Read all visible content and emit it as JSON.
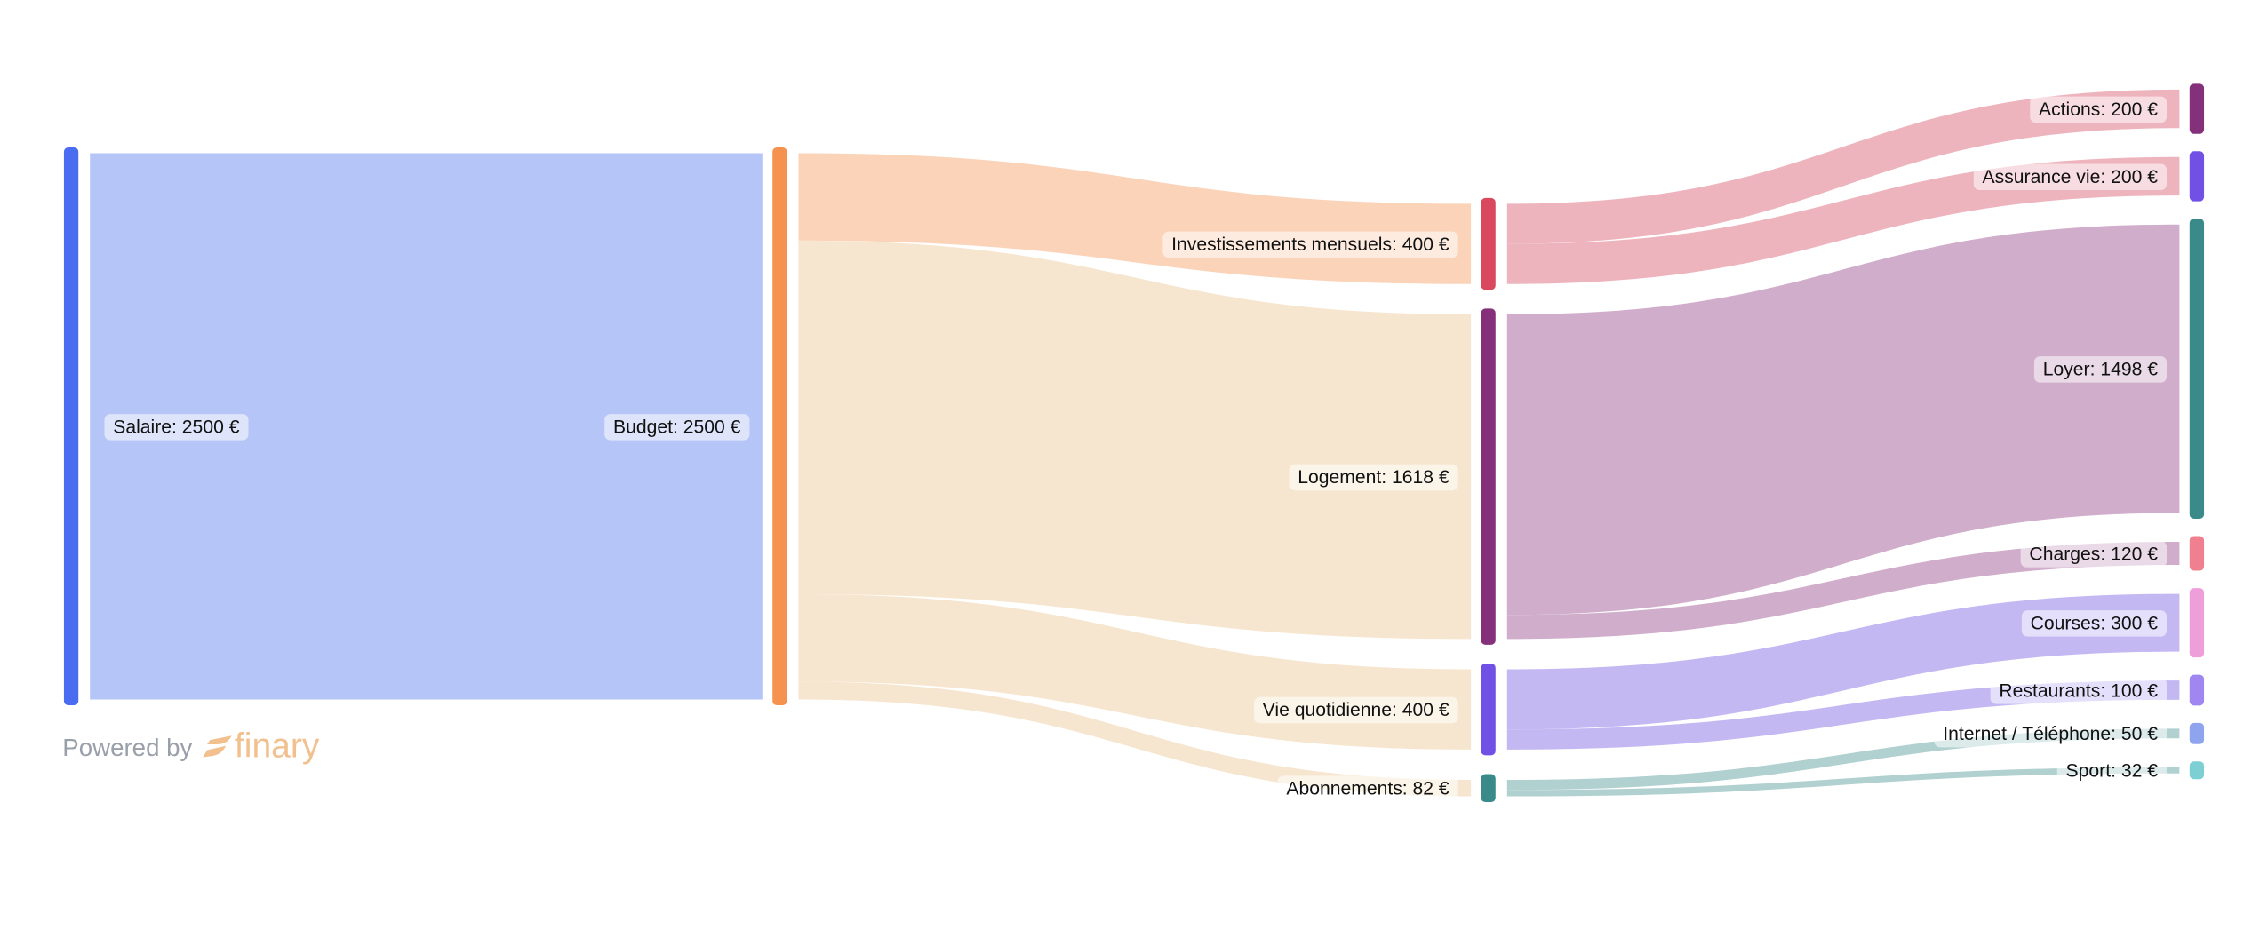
{
  "chart_data": {
    "type": "sankey",
    "title": "",
    "unit": "€",
    "nodes": [
      {
        "id": "salaire",
        "label": "Salaire: 2500 €",
        "value": 2500,
        "color": "#4a6cf0"
      },
      {
        "id": "budget",
        "label": "Budget: 2500 €",
        "value": 2500,
        "color": "#f5924e"
      },
      {
        "id": "investissements",
        "label": "Investissements mensuels: 400 €",
        "value": 400,
        "color": "#d9485e"
      },
      {
        "id": "logement",
        "label": "Logement: 1618 €",
        "value": 1618,
        "color": "#85307a"
      },
      {
        "id": "vie",
        "label": "Vie quotidienne: 400 €",
        "value": 400,
        "color": "#7150e6"
      },
      {
        "id": "abonnements",
        "label": "Abonnements: 82 €",
        "value": 82,
        "color": "#3a8a8a"
      },
      {
        "id": "actions",
        "label": "Actions: 200 €",
        "value": 200,
        "color": "#85307a"
      },
      {
        "id": "assurance",
        "label": "Assurance vie: 200 €",
        "value": 200,
        "color": "#7150e6"
      },
      {
        "id": "loyer",
        "label": "Loyer: 1498 €",
        "value": 1498,
        "color": "#3a8a8a"
      },
      {
        "id": "charges",
        "label": "Charges: 120 €",
        "value": 120,
        "color": "#f0808f"
      },
      {
        "id": "courses",
        "label": "Courses: 300 €",
        "value": 300,
        "color": "#ee9ed8"
      },
      {
        "id": "restaurants",
        "label": "Restaurants: 100 €",
        "value": 100,
        "color": "#9f86f0"
      },
      {
        "id": "internet",
        "label": "Internet / Téléphone: 50 €",
        "value": 50,
        "color": "#8ea4ef"
      },
      {
        "id": "sport",
        "label": "Sport: 32 €",
        "value": 32,
        "color": "#7ccfd3"
      }
    ],
    "links": [
      {
        "source": "salaire",
        "target": "budget",
        "value": 2500,
        "color": "#b5c5f7"
      },
      {
        "source": "budget",
        "target": "investissements",
        "value": 400,
        "color": "#fbd3b8"
      },
      {
        "source": "budget",
        "target": "logement",
        "value": 1618,
        "color": "#f7e6cf"
      },
      {
        "source": "budget",
        "target": "vie",
        "value": 400,
        "color": "#f7e6cf"
      },
      {
        "source": "budget",
        "target": "abonnements",
        "value": 82,
        "color": "#f7e6cf"
      },
      {
        "source": "investissements",
        "target": "actions",
        "value": 200,
        "color": "#eeb4bd"
      },
      {
        "source": "investissements",
        "target": "assurance",
        "value": 200,
        "color": "#eeb4bd"
      },
      {
        "source": "logement",
        "target": "loyer",
        "value": 1498,
        "color": "#d0aecb"
      },
      {
        "source": "logement",
        "target": "charges",
        "value": 120,
        "color": "#d0aecb"
      },
      {
        "source": "vie",
        "target": "courses",
        "value": 300,
        "color": "#c4b8f3"
      },
      {
        "source": "vie",
        "target": "restaurants",
        "value": 100,
        "color": "#c4b8f3"
      },
      {
        "source": "abonnements",
        "target": "internet",
        "value": 50,
        "color": "#b1d0d0"
      },
      {
        "source": "abonnements",
        "target": "sport",
        "value": 32,
        "color": "#b1d0d0"
      }
    ]
  },
  "footer": {
    "powered_by": "Powered by",
    "brand": "finary",
    "brand_color": "#f2c08e"
  }
}
